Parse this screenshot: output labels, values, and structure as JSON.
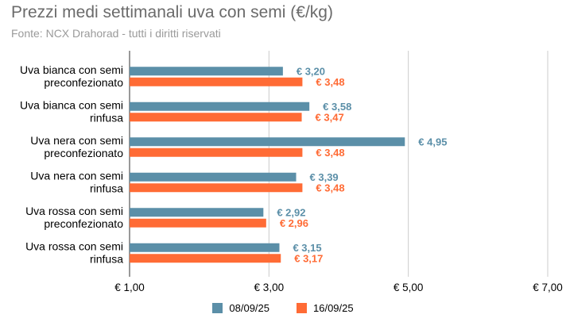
{
  "chart_data": {
    "type": "bar",
    "orientation": "horizontal",
    "title": "Prezzi medi settimanali uva con semi (€/kg)",
    "subtitle": "Fonte: NCX Drahorad - tutti i diritti riservati",
    "categories": [
      [
        "Uva bianca con semi",
        "preconfezionato"
      ],
      [
        "Uva bianca con semi",
        "rinfusa"
      ],
      [
        "Uva nera con semi",
        "preconfezionato"
      ],
      [
        "Uva nera con semi",
        "rinfusa"
      ],
      [
        "Uva rossa con semi",
        "preconfezionato"
      ],
      [
        "Uva rossa con semi",
        "rinfusa"
      ]
    ],
    "series": [
      {
        "name": "08/09/25",
        "color": "#5b8fa8",
        "values": [
          3.2,
          3.58,
          4.95,
          3.39,
          2.92,
          3.15
        ],
        "labels": [
          "€ 3,20",
          "€ 3,58",
          "€ 4,95",
          "€ 3,39",
          "€ 2,92",
          "€ 3,15"
        ]
      },
      {
        "name": "16/09/25",
        "color": "#ff6b35",
        "values": [
          3.48,
          3.47,
          3.48,
          3.48,
          2.96,
          3.17
        ],
        "labels": [
          "€ 3,48",
          "€ 3,47",
          "€ 3,48",
          "€ 3,48",
          "€ 2,96",
          "€ 3,17"
        ]
      }
    ],
    "xlim": [
      1.0,
      7.0
    ],
    "xticks": [
      1,
      3,
      5,
      7
    ],
    "xtick_labels": [
      "€ 1,00",
      "€ 3,00",
      "€ 5,00",
      "€ 7,00"
    ],
    "grid": true,
    "legend_position": "bottom"
  }
}
